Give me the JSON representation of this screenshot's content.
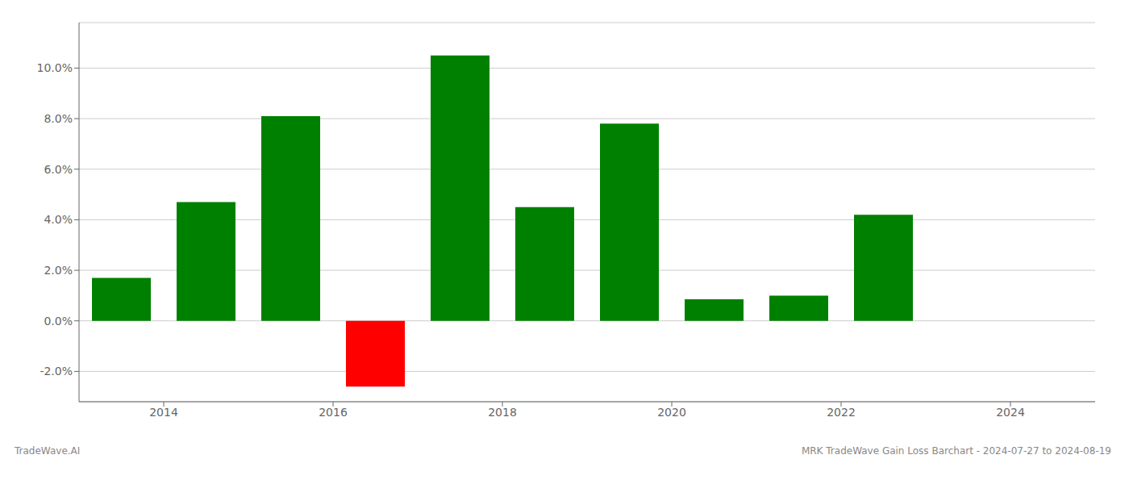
{
  "chart_data": {
    "type": "bar",
    "x": [
      2013.5,
      2014.5,
      2015.5,
      2016.5,
      2017.5,
      2018.5,
      2019.5,
      2020.5,
      2021.5,
      2022.5
    ],
    "values": [
      0.017,
      0.047,
      0.081,
      -0.026,
      0.105,
      0.045,
      0.078,
      0.0085,
      0.01,
      0.042
    ],
    "colors": [
      "#008000",
      "#008000",
      "#008000",
      "#ff0000",
      "#008000",
      "#008000",
      "#008000",
      "#008000",
      "#008000",
      "#008000"
    ],
    "xlim": [
      2013.0,
      2025.0
    ],
    "xticks": [
      2014,
      2016,
      2018,
      2020,
      2022,
      2024
    ],
    "ylim": [
      -0.032,
      0.118
    ],
    "yticks": [
      {
        "value": -0.02,
        "label": "-2.0%"
      },
      {
        "value": 0.0,
        "label": "0.0%"
      },
      {
        "value": 0.02,
        "label": "2.0%"
      },
      {
        "value": 0.04,
        "label": "4.0%"
      },
      {
        "value": 0.06,
        "label": "6.0%"
      },
      {
        "value": 0.08,
        "label": "8.0%"
      },
      {
        "value": 0.1,
        "label": "10.0%"
      }
    ],
    "grid": true,
    "annotations": [
      "TradeWave.AI",
      "MRK TradeWave Gain Loss Barchart - 2024-07-27 to 2024-08-19"
    ]
  }
}
